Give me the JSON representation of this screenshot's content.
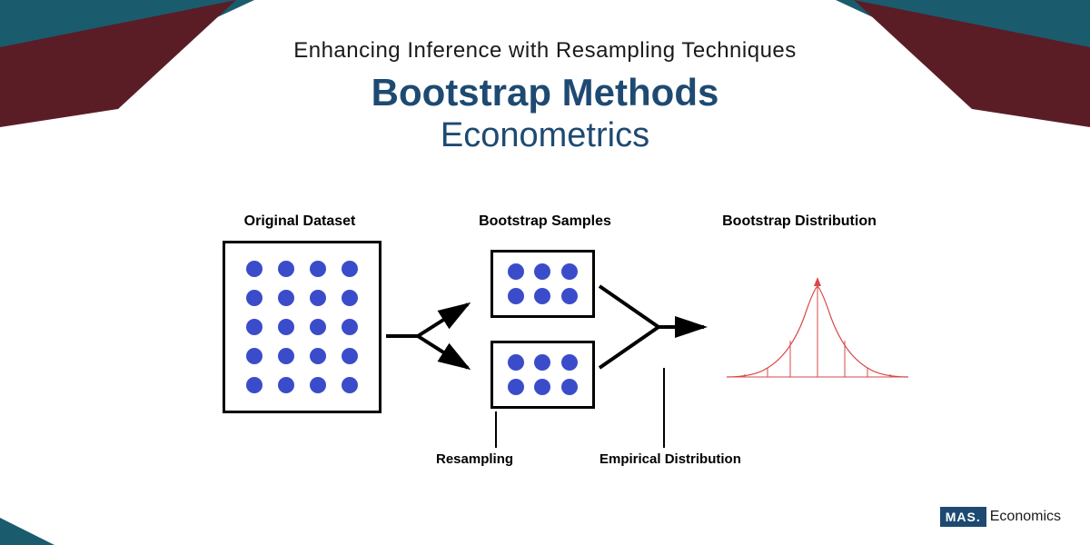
{
  "colors": {
    "teal": "#1a5b6e",
    "maroon": "#5a1d26",
    "title_blue": "#1e4a72",
    "dot_blue": "#3b4cca",
    "dist_red": "#d94848",
    "logo_bg": "#1e4a72"
  },
  "headings": {
    "subtitle": "Enhancing Inference with Resampling Techniques",
    "title": "Bootstrap Methods",
    "category": "Econometrics"
  },
  "diagram": {
    "labels": {
      "original": "Original Dataset",
      "samples": "Bootstrap Samples",
      "distribution": "Bootstrap Distribution"
    },
    "sub_labels": {
      "resampling": "Resampling",
      "empirical": "Empirical Distribution"
    },
    "original_box": {
      "rows": 5,
      "cols": 4,
      "dot_size": 18
    },
    "sample_box": {
      "rows": 2,
      "cols": 3,
      "dot_size": 18
    },
    "distribution": {
      "type": "bell-curve",
      "stroke": "#d94848",
      "stroke_width": 1,
      "vertical_lines": 7,
      "center_arrow": true
    }
  },
  "logo": {
    "box": "MAS.",
    "text": "Economics"
  }
}
